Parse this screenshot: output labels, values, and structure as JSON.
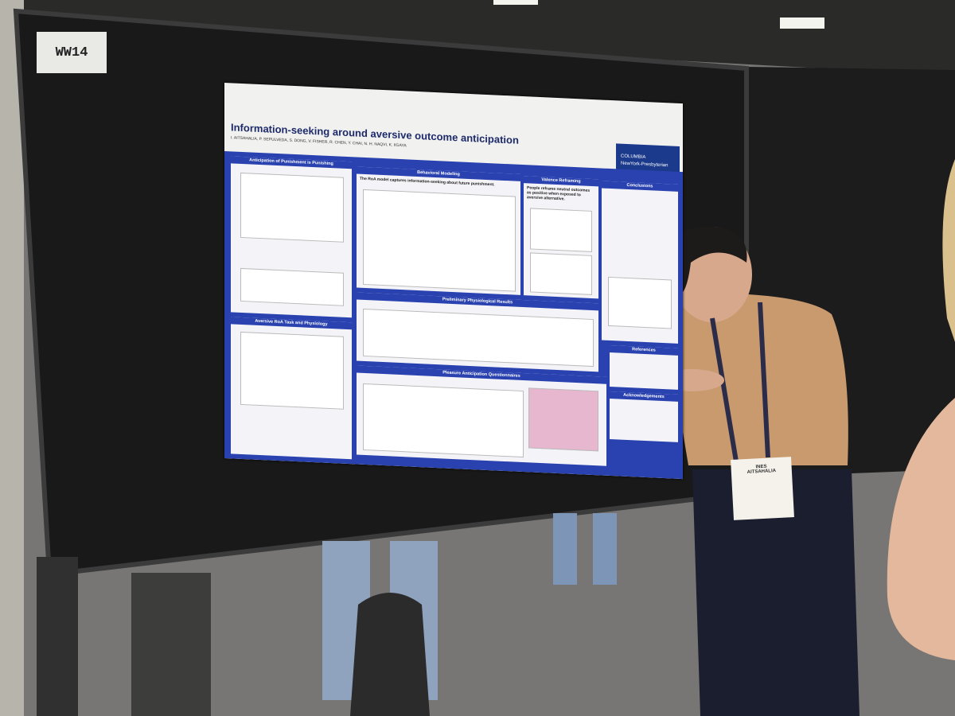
{
  "board": {
    "label": "WW14"
  },
  "poster": {
    "title": "Information-seeking around aversive outcome anticipation",
    "authors": "I. AITSAHALIA, P. SEPULVEDA, S. DONG, V. FISHER, R. CHEN, Y. CHAI, N. H. NAQVI, K. IIGAYA",
    "logos": [
      "COLUMBIA",
      "NewYork-Presbyterian"
    ],
    "sections": {
      "anticipation": "Anticipation of Punishment is Punishing",
      "behavioral": "Behavioral Modeling",
      "behavioral_lead": "The RoA model captures information-seeking about future punishment.",
      "valence": "Valence Reframing",
      "valence_lead": "People reframe neutral outcomes as positive when exposed to aversive alternative.",
      "conclusions": "Conclusions",
      "aversive": "Aversive RoA Task and Physiology",
      "physiological": "Preliminary Physiological Results",
      "pleasure": "Pleasure Anticipation Questionnaires",
      "references": "References",
      "acknowledgements": "Acknowledgements"
    }
  },
  "badge": {
    "first": "INES",
    "last": "AITSAHALIA"
  }
}
